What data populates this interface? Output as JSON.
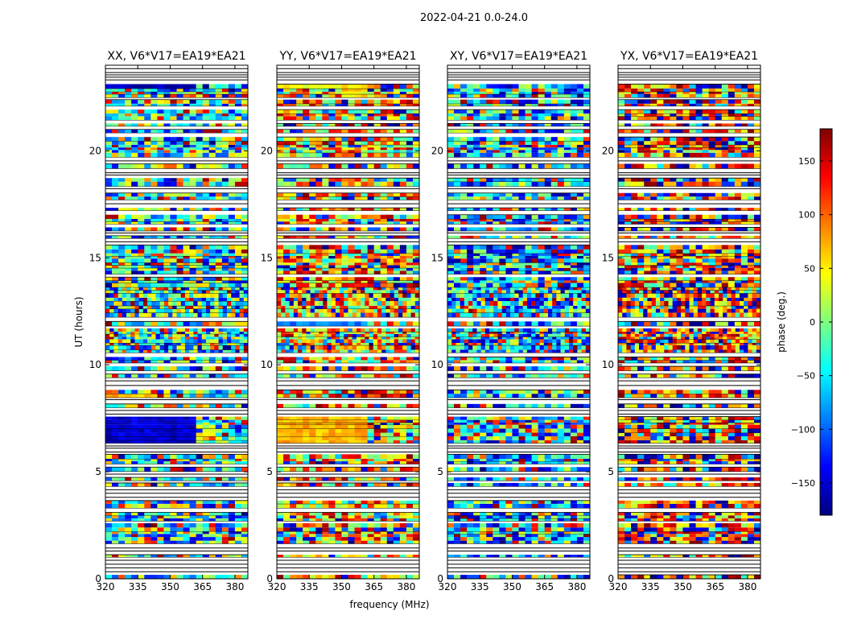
{
  "figure": {
    "suptitle": "2022-04-21 0.0-24.0",
    "xlabel": "frequency (MHz)",
    "ylabel": "UT (hours)",
    "colorbar": {
      "label": "phase (deg.)",
      "range": [
        -180,
        180
      ],
      "ticks": [
        -150,
        -100,
        -50,
        0,
        50,
        100,
        150
      ],
      "tick_labels": [
        "−150",
        "−100",
        "−50",
        "0",
        "50",
        "100",
        "150"
      ],
      "colormap": "jet",
      "colors": [
        "#00007f",
        "#0000ff",
        "#007fff",
        "#00ffff",
        "#7fff7f",
        "#ffff00",
        "#ff7f00",
        "#ff0000",
        "#7f0000"
      ]
    }
  },
  "chart_data": [
    {
      "type": "heatmap",
      "title": "XX, V6*V17=EA19*EA21",
      "xlabel": "frequency (MHz)",
      "ylabel": "UT (hours)",
      "xlim": [
        320,
        386
      ],
      "ylim": [
        0,
        24
      ],
      "xticks": [
        320,
        335,
        350,
        365,
        380
      ],
      "yticks": [
        0,
        5,
        10,
        15,
        20
      ],
      "value": "phase (deg.)",
      "coherent_bands": [
        {
          "t0": 6.3,
          "t1": 7.8,
          "f0": 320,
          "f1": 362,
          "phase": -150
        },
        {
          "t0": 22.9,
          "t1": 23.4,
          "f0": 320,
          "f1": 362,
          "phase": -160
        },
        {
          "t0": 8.2,
          "t1": 8.7,
          "f0": 320,
          "f1": 345,
          "phase": 70
        }
      ]
    },
    {
      "type": "heatmap",
      "title": "YY, V6*V17=EA19*EA21",
      "xlabel": "frequency (MHz)",
      "ylabel": "UT (hours)",
      "xlim": [
        320,
        386
      ],
      "ylim": [
        0,
        24
      ],
      "xticks": [
        320,
        335,
        350,
        365,
        380
      ],
      "yticks": [
        0,
        5,
        10,
        15,
        20
      ],
      "value": "phase (deg.)",
      "coherent_bands": [
        {
          "t0": 6.3,
          "t1": 7.8,
          "f0": 320,
          "f1": 362,
          "phase": 70
        },
        {
          "t0": 22.9,
          "t1": 23.4,
          "f0": 320,
          "f1": 362,
          "phase": 45
        },
        {
          "t0": 11.8,
          "t1": 12.2,
          "f0": 320,
          "f1": 362,
          "phase": -90
        }
      ]
    },
    {
      "type": "heatmap",
      "title": "XY, V6*V17=EA19*EA21",
      "xlabel": "frequency (MHz)",
      "ylabel": "UT (hours)",
      "xlim": [
        320,
        386
      ],
      "ylim": [
        0,
        24
      ],
      "xticks": [
        320,
        335,
        350,
        365,
        380
      ],
      "yticks": [
        0,
        5,
        10,
        15,
        20
      ],
      "value": "phase (deg.)",
      "coherent_bands": []
    },
    {
      "type": "heatmap",
      "title": "YX, V6*V17=EA19*EA21",
      "xlabel": "frequency (MHz)",
      "ylabel": "UT (hours)",
      "xlim": [
        320,
        386
      ],
      "ylim": [
        0,
        24
      ],
      "xticks": [
        320,
        335,
        350,
        365,
        380
      ],
      "yticks": [
        0,
        5,
        10,
        15,
        20
      ],
      "value": "phase (deg.)",
      "coherent_bands": []
    }
  ]
}
